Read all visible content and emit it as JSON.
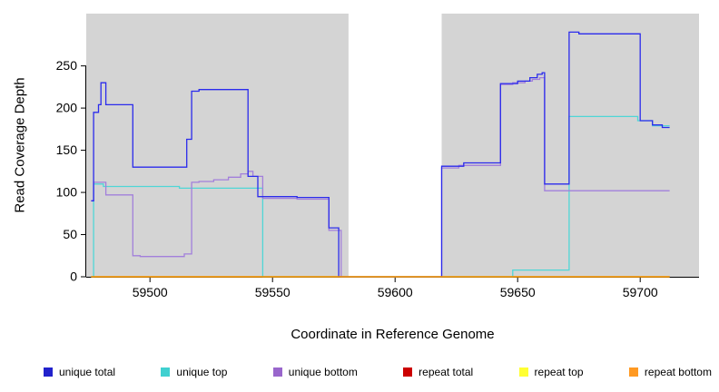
{
  "figure": {
    "y_axis_title": "Read Coverage Depth",
    "x_axis_title": "Coordinate in Reference Genome"
  },
  "chart_data": {
    "type": "line",
    "subtype": "step-coverage-plot",
    "title": "",
    "xlabel": "Coordinate in Reference Genome",
    "ylabel": "Read Coverage Depth",
    "x_domain": [
      59474,
      59724
    ],
    "y_domain": [
      0,
      312
    ],
    "x_ticks": [
      59500,
      59550,
      59600,
      59650,
      59700
    ],
    "y_ticks": [
      0,
      50,
      100,
      150,
      200,
      250
    ],
    "grid": false,
    "panel_bg": "#D4D4D4",
    "gap_region": [
      59581,
      59619
    ],
    "x_end": 59712,
    "legend_position": "bottom",
    "series": [
      {
        "name": "unique top",
        "color": "#4FD6D6",
        "points": [
          [
            59476,
            0
          ],
          [
            59477,
            110
          ],
          [
            59481,
            107
          ],
          [
            59512,
            105
          ],
          [
            59546,
            0
          ],
          [
            59648,
            8
          ],
          [
            59671,
            190
          ],
          [
            59699,
            185
          ],
          [
            59705,
            179
          ]
        ]
      },
      {
        "name": "unique bottom",
        "color": "#A27FDB",
        "points": [
          [
            59476,
            90
          ],
          [
            59477,
            112
          ],
          [
            59482,
            97
          ],
          [
            59493,
            25
          ],
          [
            59496,
            24
          ],
          [
            59514,
            27
          ],
          [
            59517,
            112
          ],
          [
            59520,
            113
          ],
          [
            59526,
            115
          ],
          [
            59532,
            118
          ],
          [
            59537,
            122
          ],
          [
            59540,
            125
          ],
          [
            59542,
            119
          ],
          [
            59546,
            93
          ],
          [
            59560,
            92
          ],
          [
            59573,
            55
          ],
          [
            59578,
            0
          ],
          [
            59619,
            129
          ],
          [
            59626,
            132
          ],
          [
            59643,
            228
          ],
          [
            59648,
            230
          ],
          [
            59653,
            232
          ],
          [
            59656,
            234
          ],
          [
            59659,
            236
          ],
          [
            59661,
            102
          ]
        ]
      },
      {
        "name": "unique total",
        "color": "#2B2BEC",
        "points": [
          [
            59476,
            90
          ],
          [
            59477,
            195
          ],
          [
            59479,
            204
          ],
          [
            59480,
            230
          ],
          [
            59482,
            204
          ],
          [
            59493,
            130
          ],
          [
            59515,
            163
          ],
          [
            59517,
            220
          ],
          [
            59520,
            222
          ],
          [
            59540,
            119
          ],
          [
            59544,
            95
          ],
          [
            59560,
            94
          ],
          [
            59573,
            58
          ],
          [
            59577,
            0
          ],
          [
            59619,
            131
          ],
          [
            59628,
            135
          ],
          [
            59643,
            229
          ],
          [
            59650,
            232
          ],
          [
            59655,
            236
          ],
          [
            59658,
            240
          ],
          [
            59660,
            242
          ],
          [
            59661,
            110
          ],
          [
            59671,
            290
          ],
          [
            59675,
            288
          ],
          [
            59700,
            185
          ],
          [
            59705,
            180
          ],
          [
            59709,
            177
          ]
        ]
      },
      {
        "name": "repeat total",
        "color": "#CC0000",
        "points": [
          [
            59476,
            0
          ]
        ]
      },
      {
        "name": "repeat top",
        "color": "#FFFF00",
        "points": [
          [
            59476,
            0
          ]
        ]
      },
      {
        "name": "repeat bottom",
        "color": "#FF9900",
        "points": [
          [
            59476,
            0
          ]
        ]
      }
    ],
    "legend": [
      {
        "label": "unique total",
        "color": "#2222CC"
      },
      {
        "label": "unique top",
        "color": "#40D0D0"
      },
      {
        "label": "unique bottom",
        "color": "#9966CC"
      },
      {
        "label": "repeat total",
        "color": "#CC0000"
      },
      {
        "label": "repeat top",
        "color": "#FFFF33"
      },
      {
        "label": "repeat bottom",
        "color": "#FF9922"
      }
    ]
  }
}
